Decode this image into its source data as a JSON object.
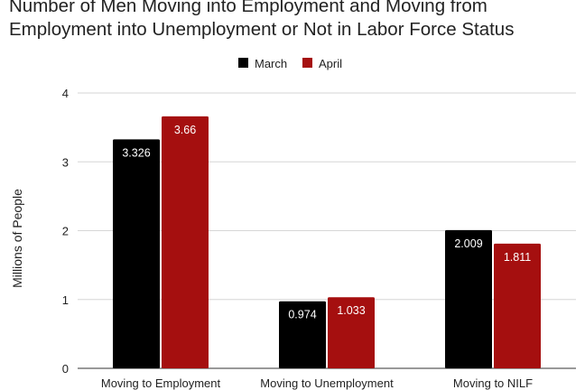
{
  "chart_data": {
    "type": "bar",
    "title": [
      "Number of Men Moving into Employment and Moving from",
      "Employment into Unemployment or Not in Labor Force Status"
    ],
    "ylabel": "Millions of People",
    "xlabel": "",
    "ylim": [
      0,
      4
    ],
    "yticks": [
      "0",
      "1",
      "2",
      "3",
      "4"
    ],
    "categories": [
      "Moving to Employment",
      "Moving to Unemployment",
      "Moving to NILF"
    ],
    "series": [
      {
        "name": "March",
        "color": "#000000",
        "values": [
          3.326,
          0.974,
          2.009
        ],
        "labels": [
          "3.326",
          "0.974",
          "2.009"
        ]
      },
      {
        "name": "April",
        "color": "#a50f0f",
        "values": [
          3.66,
          1.033,
          1.811
        ],
        "labels": [
          "3.66",
          "1.033",
          "1.811"
        ]
      }
    ],
    "grid": true,
    "legend_position": "top-center"
  }
}
